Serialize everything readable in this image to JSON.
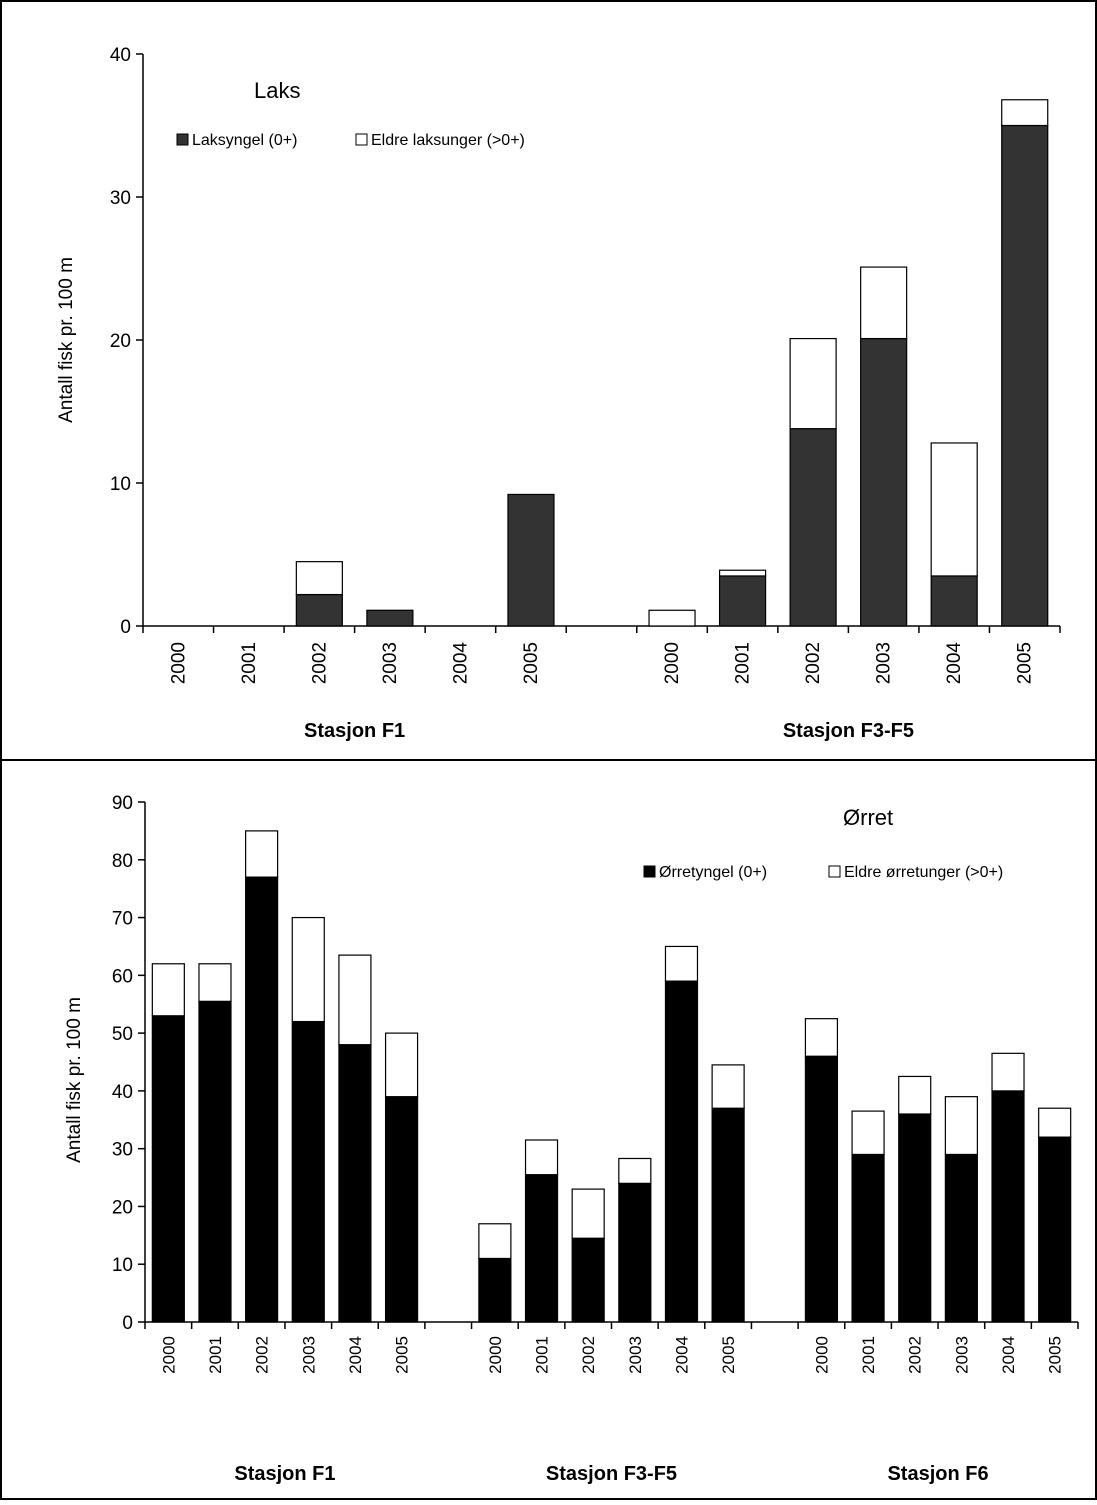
{
  "chart_data": [
    {
      "type": "bar",
      "stacked": true,
      "title": "Laks",
      "ylabel": "Antall fisk pr. 100 m",
      "ylim": [
        0,
        40
      ],
      "yticks": [
        0,
        10,
        20,
        30,
        40
      ],
      "legend_placement": "top-left",
      "groups": [
        {
          "label": "Stasjon F1",
          "categories": [
            "2000",
            "2001",
            "2002",
            "2003",
            "2004",
            "2005"
          ]
        },
        {
          "label": "Stasjon F3-F5",
          "categories": [
            "2000",
            "2001",
            "2002",
            "2003",
            "2004",
            "2005"
          ]
        }
      ],
      "series": [
        {
          "name": "Laksyngel (0+)",
          "color": "#333333",
          "values": [
            [
              0,
              0,
              2.2,
              1.1,
              0,
              9.2
            ],
            [
              0,
              3.5,
              13.8,
              20.1,
              3.5,
              35.0
            ]
          ]
        },
        {
          "name": "Eldre laksunger (>0+)",
          "color": "#ffffff",
          "values": [
            [
              0,
              0,
              2.3,
              0,
              0,
              0
            ],
            [
              1.1,
              0.4,
              6.3,
              5.0,
              9.3,
              1.8
            ]
          ]
        }
      ]
    },
    {
      "type": "bar",
      "stacked": true,
      "title": "Ørret",
      "ylabel": "Antall fisk pr. 100 m",
      "ylim": [
        0,
        90
      ],
      "yticks": [
        0,
        10,
        20,
        30,
        40,
        50,
        60,
        70,
        80,
        90
      ],
      "legend_placement": "top-right",
      "groups": [
        {
          "label": "Stasjon F1",
          "categories": [
            "2000",
            "2001",
            "2002",
            "2003",
            "2004",
            "2005"
          ]
        },
        {
          "label": "Stasjon F3-F5",
          "categories": [
            "2000",
            "2001",
            "2002",
            "2003",
            "2004",
            "2005"
          ]
        },
        {
          "label": "Stasjon F6",
          "categories": [
            "2000",
            "2001",
            "2002",
            "2003",
            "2004",
            "2005"
          ]
        }
      ],
      "series": [
        {
          "name": "Ørretyngel (0+)",
          "color": "#000000",
          "values": [
            [
              53,
              55.5,
              77,
              52,
              48,
              39
            ],
            [
              11,
              25.5,
              14.5,
              24,
              59,
              37
            ],
            [
              46,
              29,
              36,
              29,
              40,
              32
            ]
          ]
        },
        {
          "name": "Eldre ørretunger (>0+)",
          "color": "#ffffff",
          "values": [
            [
              9,
              6.5,
              8,
              18,
              15.5,
              11
            ],
            [
              6,
              6,
              8.5,
              4.3,
              6,
              7.5
            ],
            [
              6.5,
              7.5,
              6.5,
              10,
              6.5,
              5
            ]
          ]
        }
      ]
    }
  ]
}
